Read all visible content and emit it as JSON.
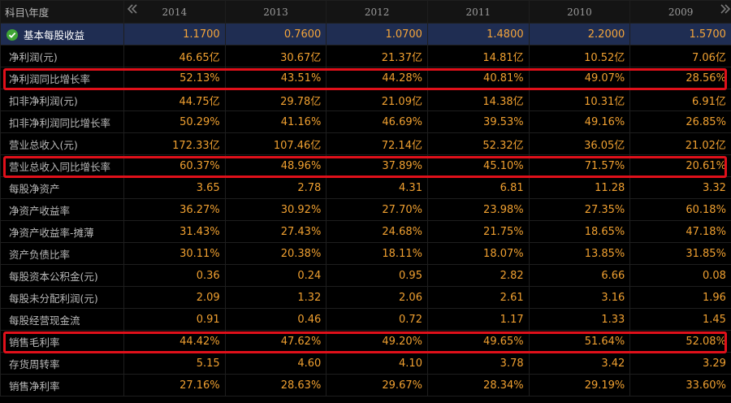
{
  "header": {
    "corner_label": "科目\\年度",
    "prev_icon": "chevron-double-left-icon",
    "next_icon": "chevron-double-right-icon",
    "years": [
      "2014",
      "2013",
      "2012",
      "2011",
      "2010",
      "2009"
    ]
  },
  "rows": [
    {
      "label": "基本每股收益",
      "values": [
        "1.1700",
        "0.7600",
        "1.0700",
        "1.4800",
        "2.2000",
        "1.5700"
      ],
      "icon": "check-circle-icon",
      "selected": true
    },
    {
      "label": "净利润(元)",
      "values": [
        "46.65亿",
        "30.67亿",
        "21.37亿",
        "14.81亿",
        "10.52亿",
        "7.06亿"
      ]
    },
    {
      "label": "净利润同比增长率",
      "values": [
        "52.13%",
        "43.51%",
        "44.28%",
        "40.81%",
        "49.07%",
        "28.56%"
      ],
      "highlighted": true
    },
    {
      "label": "扣非净利润(元)",
      "values": [
        "44.75亿",
        "29.78亿",
        "21.09亿",
        "14.38亿",
        "10.31亿",
        "6.91亿"
      ]
    },
    {
      "label": "扣非净利润同比增长率",
      "values": [
        "50.29%",
        "41.16%",
        "46.69%",
        "39.53%",
        "49.16%",
        "26.85%"
      ]
    },
    {
      "label": "营业总收入(元)",
      "values": [
        "172.33亿",
        "107.46亿",
        "72.14亿",
        "52.32亿",
        "36.05亿",
        "21.02亿"
      ]
    },
    {
      "label": "营业总收入同比增长率",
      "values": [
        "60.37%",
        "48.96%",
        "37.89%",
        "45.10%",
        "71.57%",
        "20.61%"
      ],
      "highlighted": true
    },
    {
      "label": "每股净资产",
      "values": [
        "3.65",
        "2.78",
        "4.31",
        "6.81",
        "11.28",
        "3.32"
      ]
    },
    {
      "label": "净资产收益率",
      "values": [
        "36.27%",
        "30.92%",
        "27.70%",
        "23.98%",
        "27.35%",
        "60.18%"
      ]
    },
    {
      "label": "净资产收益率-摊薄",
      "values": [
        "31.43%",
        "27.43%",
        "24.68%",
        "21.75%",
        "18.65%",
        "47.18%"
      ]
    },
    {
      "label": "资产负债比率",
      "values": [
        "30.11%",
        "20.38%",
        "18.11%",
        "18.07%",
        "13.85%",
        "31.85%"
      ]
    },
    {
      "label": "每股资本公积金(元)",
      "values": [
        "0.36",
        "0.24",
        "0.95",
        "2.82",
        "6.66",
        "0.08"
      ]
    },
    {
      "label": "每股未分配利润(元)",
      "values": [
        "2.09",
        "1.32",
        "2.06",
        "2.61",
        "3.16",
        "1.96"
      ]
    },
    {
      "label": "每股经营现金流",
      "values": [
        "0.91",
        "0.46",
        "0.72",
        "1.17",
        "1.33",
        "1.45"
      ]
    },
    {
      "label": "销售毛利率",
      "values": [
        "44.42%",
        "47.62%",
        "49.20%",
        "49.65%",
        "51.64%",
        "52.08%"
      ],
      "highlighted": true
    },
    {
      "label": "存货周转率",
      "values": [
        "5.15",
        "4.60",
        "4.10",
        "3.78",
        "3.42",
        "3.29"
      ]
    },
    {
      "label": "销售净利率",
      "values": [
        "27.16%",
        "28.63%",
        "29.67%",
        "28.34%",
        "29.19%",
        "33.60%"
      ]
    }
  ],
  "colors": {
    "value_text": "#f0a030",
    "label_text": "#b9b9b9",
    "selected_row_bg": "#1f2d52",
    "highlight_border": "#e0101a",
    "check_icon": "#3fa535"
  }
}
